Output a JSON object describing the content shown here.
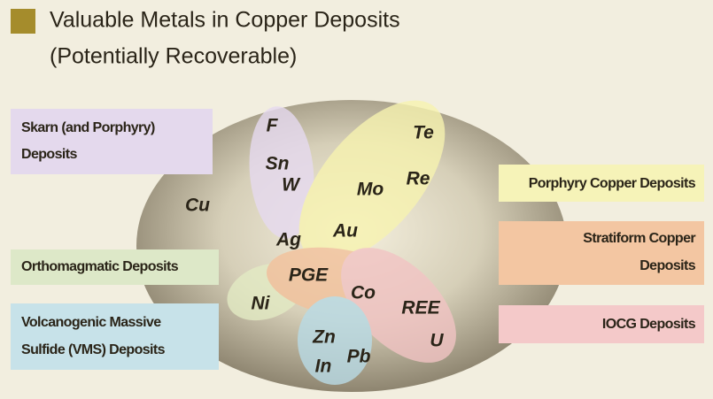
{
  "header": {
    "title": "Valuable Metals in Copper Deposits",
    "subtitle": "(Potentially Recoverable)"
  },
  "deposits": [
    {
      "lines": [
        "Skarn (and Porphyry)",
        "Deposits"
      ]
    },
    {
      "lines": [
        "Orthomagmatic Deposits"
      ]
    },
    {
      "lines": [
        "Volcanogenic Massive",
        "Sulfide (VMS) Deposits"
      ]
    },
    {
      "lines": [
        "Porphyry Copper  Deposits"
      ]
    },
    {
      "lines": [
        "Stratiform Copper",
        "Deposits"
      ]
    },
    {
      "lines": [
        "IOCG Deposits"
      ]
    }
  ],
  "elements": [
    "F",
    "Te",
    "Sn",
    "W",
    "Mo",
    "Re",
    "Cu",
    "Au",
    "Ag",
    "PGE",
    "Ni",
    "Co",
    "REE",
    "U",
    "Zn",
    "Pb",
    "In"
  ]
}
